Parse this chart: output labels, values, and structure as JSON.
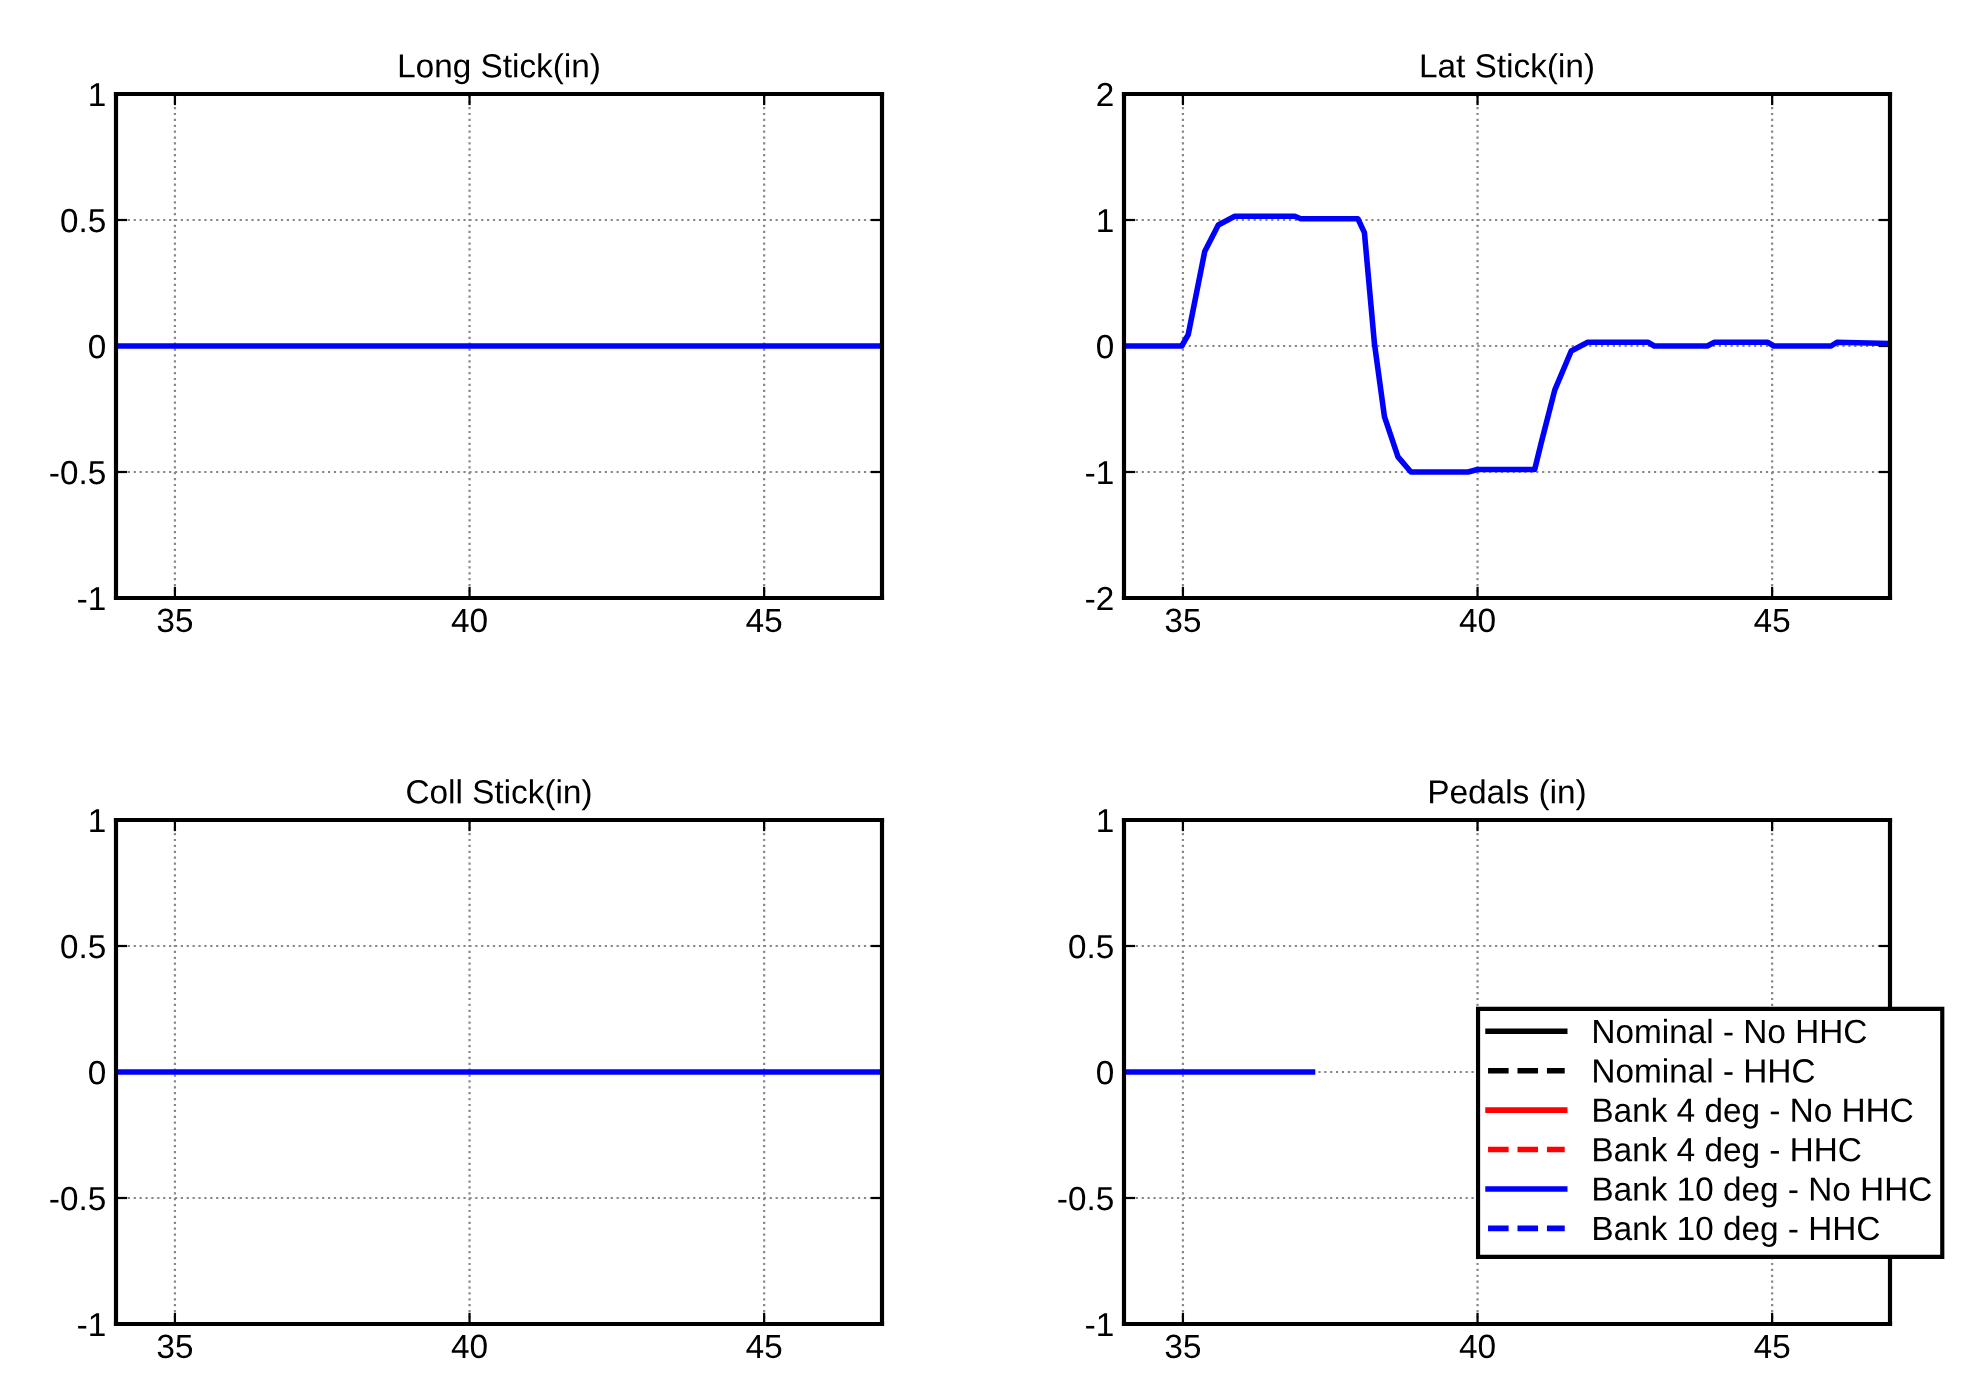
{
  "chart_data": [
    {
      "type": "line",
      "title": "Long Stick(in)",
      "x": [
        34,
        47
      ],
      "xlim": [
        34,
        47
      ],
      "xticks": [
        35,
        40,
        45
      ],
      "ylim": [
        -1,
        1
      ],
      "yticks": [
        -1,
        -0.5,
        0,
        0.5,
        1
      ],
      "grid": true,
      "series": [
        {
          "color": "#000000",
          "line_style": "solid",
          "values": [
            null,
            null
          ]
        },
        {
          "color": "#000000",
          "line_style": "dashed",
          "values": [
            null,
            null
          ]
        },
        {
          "color": "#ff0000",
          "line_style": "solid",
          "values": [
            null,
            null
          ]
        },
        {
          "color": "#ff0000",
          "line_style": "dashed",
          "values": [
            null,
            null
          ]
        },
        {
          "color": "#0000ff",
          "line_style": "solid",
          "values": [
            0,
            0
          ]
        },
        {
          "color": "#0000ff",
          "line_style": "dashed",
          "values": [
            null,
            null
          ]
        }
      ]
    },
    {
      "type": "line",
      "title": "Lat Stick(in)",
      "x": [
        34.0,
        34.98,
        35.09,
        35.37,
        35.6,
        35.88,
        36.9,
        37.0,
        37.97,
        38.08,
        38.25,
        38.42,
        38.65,
        38.87,
        39.84,
        40.0,
        40.97,
        41.08,
        41.31,
        41.59,
        41.87,
        42.89,
        43.0,
        43.9,
        44.02,
        44.92,
        45.03,
        46.0,
        46.1,
        46.95
      ],
      "xlim": [
        34,
        47
      ],
      "xticks": [
        35,
        40,
        45
      ],
      "ylim": [
        -2,
        2
      ],
      "yticks": [
        -2,
        -1,
        0,
        1,
        2
      ],
      "grid": true,
      "series": [
        {
          "color": "#000000",
          "line_style": "solid",
          "values": [
            null,
            null,
            null,
            null,
            null,
            null,
            null,
            null,
            null,
            null,
            null,
            null,
            null,
            null,
            null,
            null,
            null,
            null,
            null,
            null,
            null,
            null,
            null,
            null,
            null,
            null,
            null,
            null,
            null,
            null
          ]
        },
        {
          "color": "#000000",
          "line_style": "dashed",
          "values": [
            null,
            null,
            null,
            null,
            null,
            null,
            null,
            null,
            null,
            null,
            null,
            null,
            null,
            null,
            null,
            null,
            null,
            null,
            null,
            null,
            null,
            null,
            null,
            null,
            null,
            null,
            null,
            null,
            null,
            null
          ]
        },
        {
          "color": "#ff0000",
          "line_style": "solid",
          "values": [
            null,
            null,
            null,
            null,
            null,
            null,
            null,
            null,
            null,
            null,
            null,
            null,
            null,
            null,
            null,
            null,
            null,
            null,
            null,
            null,
            null,
            null,
            null,
            null,
            null,
            null,
            null,
            null,
            null,
            null
          ]
        },
        {
          "color": "#ff0000",
          "line_style": "dashed",
          "values": [
            null,
            null,
            null,
            null,
            null,
            null,
            null,
            null,
            null,
            null,
            null,
            null,
            null,
            null,
            null,
            null,
            null,
            null,
            null,
            null,
            null,
            null,
            null,
            null,
            null,
            null,
            null,
            null,
            null,
            null
          ]
        },
        {
          "color": "#0000ff",
          "line_style": "solid",
          "values": [
            0,
            0,
            0.09,
            0.75,
            0.96,
            1.03,
            1.03,
            1.01,
            1.01,
            0.9,
            0.02,
            -0.56,
            -0.88,
            -1.0,
            -1.0,
            -0.98,
            -0.98,
            -0.77,
            -0.35,
            -0.04,
            0.03,
            0.03,
            0,
            0,
            0.03,
            0.03,
            0,
            0,
            0.03,
            0.02
          ]
        },
        {
          "color": "#0000ff",
          "line_style": "dashed",
          "values": [
            null,
            null,
            null,
            null,
            null,
            null,
            null,
            null,
            null,
            null,
            null,
            null,
            null,
            null,
            null,
            null,
            null,
            null,
            null,
            null,
            null,
            null,
            null,
            null,
            null,
            null,
            null,
            null,
            null,
            null
          ]
        }
      ]
    },
    {
      "type": "line",
      "title": "Coll Stick(in)",
      "x": [
        34,
        47
      ],
      "xlim": [
        34,
        47
      ],
      "xticks": [
        35,
        40,
        45
      ],
      "ylim": [
        -1,
        1
      ],
      "yticks": [
        -1,
        -0.5,
        0,
        0.5,
        1
      ],
      "grid": true,
      "series": [
        {
          "color": "#000000",
          "line_style": "solid",
          "values": [
            null,
            null
          ]
        },
        {
          "color": "#000000",
          "line_style": "dashed",
          "values": [
            null,
            null
          ]
        },
        {
          "color": "#ff0000",
          "line_style": "solid",
          "values": [
            null,
            null
          ]
        },
        {
          "color": "#ff0000",
          "line_style": "dashed",
          "values": [
            null,
            null
          ]
        },
        {
          "color": "#0000ff",
          "line_style": "solid",
          "values": [
            0,
            0
          ]
        },
        {
          "color": "#0000ff",
          "line_style": "dashed",
          "values": [
            null,
            null
          ]
        }
      ]
    },
    {
      "type": "line",
      "title": "Pedals (in)",
      "x": [
        34,
        37.2
      ],
      "xlim": [
        34,
        47
      ],
      "xticks": [
        35,
        40,
        45
      ],
      "ylim": [
        -1,
        1
      ],
      "yticks": [
        -1,
        -0.5,
        0,
        0.5,
        1
      ],
      "grid": true,
      "legend": "bottom right",
      "series": [
        {
          "name": "Nominal - No HHC",
          "color": "#000000",
          "line_style": "solid",
          "values": [
            null,
            null
          ]
        },
        {
          "name": "Nominal - HHC",
          "color": "#000000",
          "line_style": "dashed",
          "values": [
            null,
            null
          ]
        },
        {
          "name": "Bank 4 deg - No HHC",
          "color": "#ff0000",
          "line_style": "solid",
          "values": [
            null,
            null
          ]
        },
        {
          "name": "Bank 4 deg - HHC",
          "color": "#ff0000",
          "line_style": "dashed",
          "values": [
            null,
            null
          ]
        },
        {
          "name": "Bank 10 deg - No HHC",
          "color": "#0000ff",
          "line_style": "solid",
          "values": [
            0,
            0
          ]
        },
        {
          "name": "Bank 10 deg - HHC",
          "color": "#0000ff",
          "line_style": "dashed",
          "values": [
            null,
            null
          ]
        }
      ]
    }
  ]
}
